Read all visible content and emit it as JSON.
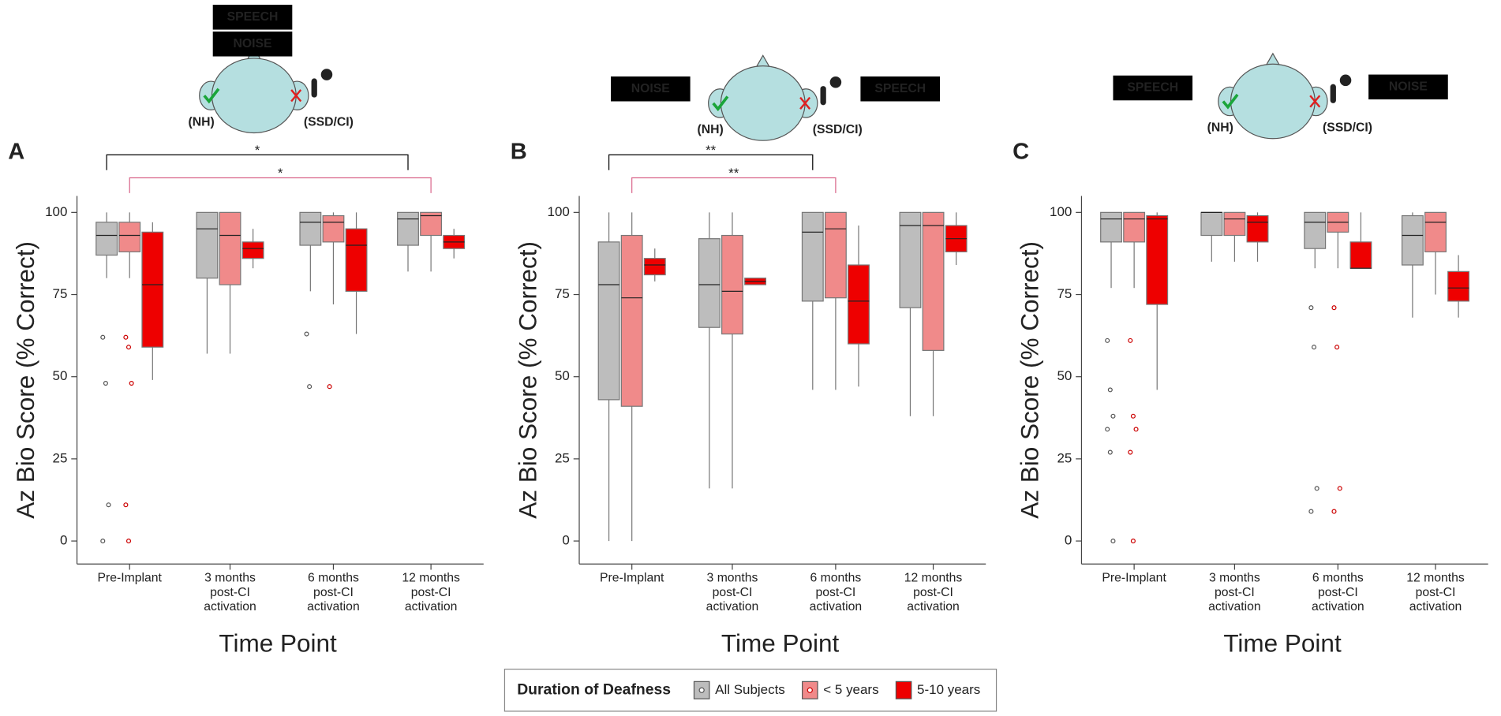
{
  "legend": {
    "title": "Duration of Deafness",
    "entries": [
      {
        "name": "All Subjects",
        "color": "#bdbdbd"
      },
      {
        "name": "< 5 years",
        "color": "#f08a8a"
      },
      {
        "name": "5-10 years",
        "color": "#ee0000"
      }
    ]
  },
  "chart_data": [
    {
      "type": "box",
      "panel_label": "A",
      "x_label": "Time Point",
      "y_label": "Az Bio Score (% Correct)",
      "speech_label": "SPEECH",
      "noise_label": "NOISE",
      "nh_label": "(NH)",
      "ci_label": "(SSD/CI)",
      "categories": [
        [
          "Pre-Implant"
        ],
        [
          "3 months",
          "post-CI",
          "activation"
        ],
        [
          "6 months",
          "post-CI",
          "activation"
        ],
        [
          "12 months",
          "post-CI",
          "activation"
        ]
      ],
      "ylim": [
        -7,
        105
      ],
      "yticks": [
        0,
        25,
        50,
        75,
        100
      ],
      "brackets": [
        {
          "label": "*",
          "color": "#000000",
          "from": 0,
          "to": 3,
          "series": 0
        },
        {
          "label": "*",
          "color": "#d9668a",
          "from": 0,
          "to": 3,
          "series": 1
        }
      ],
      "series": [
        {
          "q1": [
            87,
            80,
            90,
            90
          ],
          "median": [
            93,
            95,
            97,
            98
          ],
          "q3": [
            97,
            100,
            100,
            100
          ],
          "low": [
            80,
            57,
            76,
            82
          ],
          "high": [
            100,
            100,
            100,
            100
          ],
          "outliers": [
            [
              62,
              48,
              11,
              0
            ],
            [],
            [
              63,
              47
            ],
            []
          ]
        },
        {
          "q1": [
            88,
            78,
            91,
            93
          ],
          "median": [
            93,
            93,
            97,
            99
          ],
          "q3": [
            97,
            100,
            99,
            100
          ],
          "low": [
            80,
            57,
            72,
            82
          ],
          "high": [
            100,
            100,
            100,
            100
          ],
          "outliers": [
            [
              62,
              59,
              48,
              11,
              0
            ],
            [],
            [
              47
            ],
            []
          ]
        },
        {
          "q1": [
            59,
            86,
            76,
            89
          ],
          "median": [
            78,
            89,
            90,
            91
          ],
          "q3": [
            94,
            91,
            95,
            93
          ],
          "low": [
            49,
            83,
            63,
            86
          ],
          "high": [
            97,
            95,
            100,
            95
          ],
          "outliers": [
            [],
            [],
            [],
            []
          ]
        }
      ]
    },
    {
      "type": "box",
      "panel_label": "B",
      "x_label": "Time Point",
      "y_label": "Az Bio Score (% Correct)",
      "speech_label": "SPEECH",
      "noise_label": "NOISE",
      "nh_label": "(NH)",
      "ci_label": "(SSD/CI)",
      "categories": [
        [
          "Pre-Implant"
        ],
        [
          "3 months",
          "post-CI",
          "activation"
        ],
        [
          "6 months",
          "post-CI",
          "activation"
        ],
        [
          "12 months",
          "post-CI",
          "activation"
        ]
      ],
      "ylim": [
        -7,
        105
      ],
      "yticks": [
        0,
        25,
        50,
        75,
        100
      ],
      "brackets": [
        {
          "label": "**",
          "color": "#000000",
          "from": 0,
          "to": 2,
          "series": 0
        },
        {
          "label": "**",
          "color": "#d9668a",
          "from": 0,
          "to": 2,
          "series": 1
        }
      ],
      "series": [
        {
          "q1": [
            43,
            65,
            73,
            71
          ],
          "median": [
            78,
            78,
            94,
            96
          ],
          "q3": [
            91,
            92,
            100,
            100
          ],
          "low": [
            0,
            16,
            46,
            38
          ],
          "high": [
            100,
            100,
            100,
            100
          ],
          "outliers": [
            [],
            [],
            [],
            []
          ]
        },
        {
          "q1": [
            41,
            63,
            74,
            58
          ],
          "median": [
            74,
            76,
            95,
            96
          ],
          "q3": [
            93,
            93,
            100,
            100
          ],
          "low": [
            0,
            16,
            46,
            38
          ],
          "high": [
            100,
            100,
            100,
            100
          ],
          "outliers": [
            [],
            [],
            [],
            []
          ]
        },
        {
          "q1": [
            81,
            78,
            60,
            88
          ],
          "median": [
            84,
            79,
            73,
            92
          ],
          "q3": [
            86,
            80,
            84,
            96
          ],
          "low": [
            79,
            78,
            47,
            84
          ],
          "high": [
            89,
            80,
            96,
            100
          ],
          "outliers": [
            [],
            [],
            [],
            []
          ]
        }
      ]
    },
    {
      "type": "box",
      "panel_label": "C",
      "x_label": "Time Point",
      "y_label": "Az Bio Score (% Correct)",
      "speech_label": "SPEECH",
      "noise_label": "NOISE",
      "nh_label": "(NH)",
      "ci_label": "(SSD/CI)",
      "categories": [
        [
          "Pre-Implant"
        ],
        [
          "3 months",
          "post-CI",
          "activation"
        ],
        [
          "6 months",
          "post-CI",
          "activation"
        ],
        [
          "12 months",
          "post-CI",
          "activation"
        ]
      ],
      "ylim": [
        -7,
        105
      ],
      "yticks": [
        0,
        25,
        50,
        75,
        100
      ],
      "brackets": [],
      "series": [
        {
          "q1": [
            91,
            93,
            89,
            84
          ],
          "median": [
            98,
            100,
            97,
            93
          ],
          "q3": [
            100,
            100,
            100,
            99
          ],
          "low": [
            77,
            85,
            83,
            68
          ],
          "high": [
            100,
            100,
            100,
            100
          ],
          "outliers": [
            [
              61,
              46,
              38,
              34,
              27,
              0
            ],
            [],
            [
              71,
              59,
              16,
              9
            ],
            []
          ]
        },
        {
          "q1": [
            91,
            93,
            94,
            88
          ],
          "median": [
            98,
            98,
            97,
            97
          ],
          "q3": [
            100,
            100,
            100,
            100
          ],
          "low": [
            77,
            85,
            83,
            75
          ],
          "high": [
            100,
            100,
            100,
            100
          ],
          "outliers": [
            [
              61,
              38,
              34,
              27,
              0
            ],
            [],
            [
              71,
              59,
              16,
              9
            ],
            []
          ]
        },
        {
          "q1": [
            72,
            91,
            83,
            73
          ],
          "median": [
            98,
            97,
            83,
            77
          ],
          "q3": [
            99,
            99,
            91,
            82
          ],
          "low": [
            46,
            85,
            83,
            68
          ],
          "high": [
            100,
            100,
            100,
            87
          ],
          "outliers": [
            [],
            [],
            [],
            []
          ]
        }
      ]
    }
  ]
}
